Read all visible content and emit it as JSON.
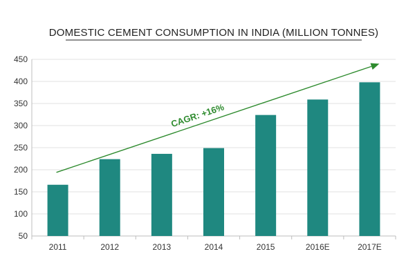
{
  "chart_data": {
    "type": "bar",
    "title": "DOMESTIC CEMENT CONSUMPTION IN INDIA (MILLION TONNES)",
    "xlabel": "",
    "ylabel": "",
    "categories": [
      "2011",
      "2012",
      "2013",
      "2014",
      "2015",
      "2016E",
      "2017E"
    ],
    "values": [
      166,
      224,
      236,
      249,
      324,
      359,
      398
    ],
    "ylim": [
      50,
      450
    ],
    "yticks": [
      50,
      100,
      150,
      200,
      250,
      300,
      350,
      400,
      450
    ],
    "grid": true,
    "bar_color": "#1f8880",
    "annotation": {
      "text": "CAGR: +16%",
      "color": "#2e8b2e",
      "arrow_from": {
        "category": "2011",
        "value": 194
      },
      "arrow_to": {
        "category": "2017E",
        "value": 440
      }
    }
  }
}
